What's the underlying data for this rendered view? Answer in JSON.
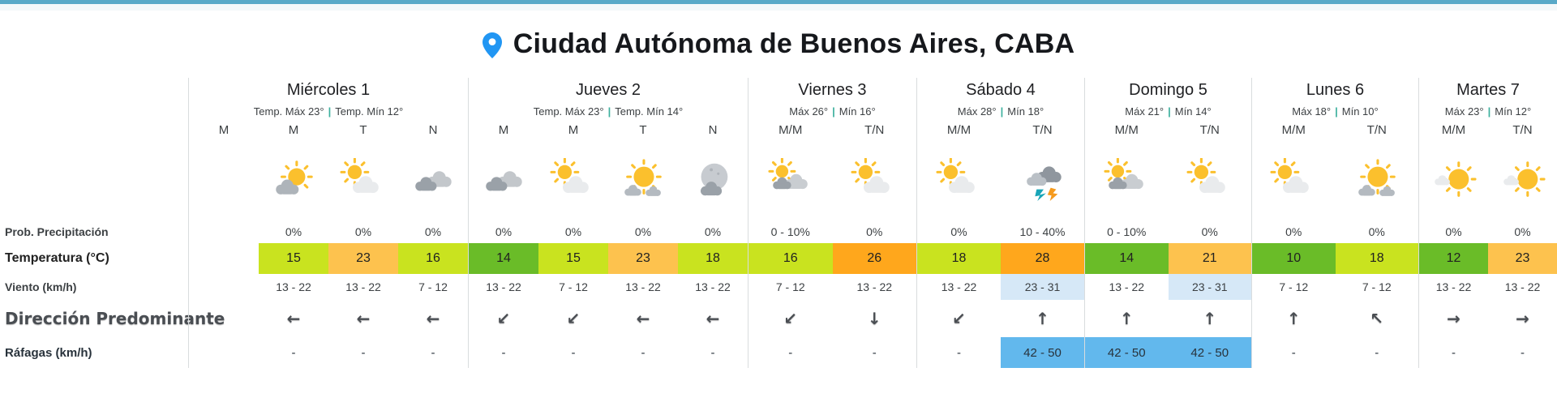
{
  "palette": {
    "top_border": "#58a9c8",
    "pin": "#2196f3",
    "separator": "#3cb09e",
    "temp_green": "#6abc28",
    "temp_lime": "#c9e31f",
    "temp_amber": "#fdc24e",
    "temp_orange": "#ffa71c",
    "wind_highlight": "#d6e8f7",
    "gust_highlight": "#62b8ed"
  },
  "header": {
    "title": "Ciudad Autónoma de Buenos Aires, CABA"
  },
  "summary_separator": "|",
  "row_labels": [
    "Prob. Precipitación",
    "Temperatura (°C)",
    "Viento (km/h)",
    "Dirección Predominante",
    "Ráfagas (km/h)"
  ],
  "days": [
    {
      "name": "Miércoles 1",
      "max_label": "Temp. Máx 23°",
      "min_label": "Temp. Mín 12°",
      "periods": [
        {
          "label": "M",
          "icon": null,
          "precip": "",
          "temp": "",
          "temp_level": null,
          "wind": "",
          "wind_hl": false,
          "dir": "",
          "gusts": "",
          "gusts_hl": false
        },
        {
          "label": "M",
          "icon": "partly-cloudy",
          "precip": "0%",
          "temp": "15",
          "temp_level": "temp_lime",
          "wind": "13 - 22",
          "wind_hl": false,
          "dir": "←",
          "gusts": "-",
          "gusts_hl": false
        },
        {
          "label": "T",
          "icon": "cloud-sun",
          "precip": "0%",
          "temp": "23",
          "temp_level": "temp_amber",
          "wind": "13 - 22",
          "wind_hl": false,
          "dir": "←",
          "gusts": "-",
          "gusts_hl": false
        },
        {
          "label": "N",
          "icon": "cloudy",
          "precip": "0%",
          "temp": "16",
          "temp_level": "temp_lime",
          "wind": "7 - 12",
          "wind_hl": false,
          "dir": "←",
          "gusts": "-",
          "gusts_hl": false
        }
      ]
    },
    {
      "name": "Jueves 2",
      "max_label": "Temp. Máx 23°",
      "min_label": "Temp. Mín 14°",
      "periods": [
        {
          "label": "M",
          "icon": "cloudy",
          "precip": "0%",
          "temp": "14",
          "temp_level": "temp_green",
          "wind": "13 - 22",
          "wind_hl": false,
          "dir": "↙",
          "gusts": "-",
          "gusts_hl": false
        },
        {
          "label": "M",
          "icon": "cloud-sun",
          "precip": "0%",
          "temp": "15",
          "temp_level": "temp_lime",
          "wind": "7 - 12",
          "wind_hl": false,
          "dir": "↙",
          "gusts": "-",
          "gusts_hl": false
        },
        {
          "label": "T",
          "icon": "mostly-sunny",
          "precip": "0%",
          "temp": "23",
          "temp_level": "temp_amber",
          "wind": "13 - 22",
          "wind_hl": false,
          "dir": "←",
          "gusts": "-",
          "gusts_hl": false
        },
        {
          "label": "N",
          "icon": "night-cloudy",
          "precip": "0%",
          "temp": "18",
          "temp_level": "temp_lime",
          "wind": "13 - 22",
          "wind_hl": false,
          "dir": "←",
          "gusts": "-",
          "gusts_hl": false
        }
      ]
    },
    {
      "name": "Viernes 3",
      "max_label": "Máx 26°",
      "min_label": "Mín 16°",
      "periods": [
        {
          "label": "M/M",
          "icon": "mostly-cloudy",
          "precip": "0 - 10%",
          "temp": "16",
          "temp_level": "temp_lime",
          "wind": "7 - 12",
          "wind_hl": false,
          "dir": "↙",
          "gusts": "-",
          "gusts_hl": false
        },
        {
          "label": "T/N",
          "icon": "cloud-sun",
          "precip": "0%",
          "temp": "26",
          "temp_level": "temp_orange",
          "wind": "13 - 22",
          "wind_hl": false,
          "dir": "↓",
          "gusts": "-",
          "gusts_hl": false
        }
      ]
    },
    {
      "name": "Sábado 4",
      "max_label": "Máx 28°",
      "min_label": "Mín 18°",
      "periods": [
        {
          "label": "M/M",
          "icon": "cloud-sun",
          "precip": "0%",
          "temp": "18",
          "temp_level": "temp_lime",
          "wind": "13 - 22",
          "wind_hl": false,
          "dir": "↙",
          "gusts": "-",
          "gusts_hl": false
        },
        {
          "label": "T/N",
          "icon": "storm",
          "precip": "10 - 40%",
          "temp": "28",
          "temp_level": "temp_orange",
          "wind": "23 - 31",
          "wind_hl": true,
          "dir": "↑",
          "gusts": "42 - 50",
          "gusts_hl": true
        }
      ]
    },
    {
      "name": "Domingo 5",
      "max_label": "Máx 21°",
      "min_label": "Mín 14°",
      "periods": [
        {
          "label": "M/M",
          "icon": "mostly-cloudy",
          "precip": "0 - 10%",
          "temp": "14",
          "temp_level": "temp_green",
          "wind": "13 - 22",
          "wind_hl": false,
          "dir": "↑",
          "gusts": "42 - 50",
          "gusts_hl": true
        },
        {
          "label": "T/N",
          "icon": "cloud-sun",
          "precip": "0%",
          "temp": "21",
          "temp_level": "temp_amber",
          "wind": "23 - 31",
          "wind_hl": true,
          "dir": "↑",
          "gusts": "42 - 50",
          "gusts_hl": true
        }
      ]
    },
    {
      "name": "Lunes 6",
      "max_label": "Máx 18°",
      "min_label": "Mín 10°",
      "periods": [
        {
          "label": "M/M",
          "icon": "cloud-sun",
          "precip": "0%",
          "temp": "10",
          "temp_level": "temp_green",
          "wind": "7 - 12",
          "wind_hl": false,
          "dir": "↑",
          "gusts": "-",
          "gusts_hl": false
        },
        {
          "label": "T/N",
          "icon": "mostly-sunny",
          "precip": "0%",
          "temp": "18",
          "temp_level": "temp_lime",
          "wind": "7 - 12",
          "wind_hl": false,
          "dir": "↖",
          "gusts": "-",
          "gusts_hl": false
        }
      ]
    },
    {
      "name": "Martes 7",
      "max_label": "Máx 23°",
      "min_label": "Mín 12°",
      "periods": [
        {
          "label": "M/M",
          "icon": "sunny-cloud",
          "precip": "0%",
          "temp": "12",
          "temp_level": "temp_green",
          "wind": "13 - 22",
          "wind_hl": false,
          "dir": "→",
          "gusts": "-",
          "gusts_hl": false
        },
        {
          "label": "T/N",
          "icon": "sunny-cloud",
          "precip": "0%",
          "temp": "23",
          "temp_level": "temp_amber",
          "wind": "13 - 22",
          "wind_hl": false,
          "dir": "→",
          "gusts": "-",
          "gusts_hl": false
        }
      ]
    }
  ]
}
